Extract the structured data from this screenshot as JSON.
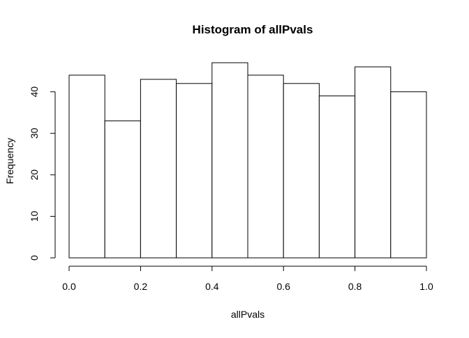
{
  "chart_data": {
    "type": "bar",
    "title": "Histogram of allPvals",
    "xlabel": "allPvals",
    "ylabel": "Frequency",
    "bin_edges": [
      0.0,
      0.1,
      0.2,
      0.3,
      0.4,
      0.5,
      0.6,
      0.7,
      0.8,
      0.9,
      1.0
    ],
    "values": [
      44,
      33,
      43,
      42,
      47,
      44,
      42,
      39,
      46,
      40
    ],
    "xlim": [
      0.0,
      1.0
    ],
    "ylim": [
      0,
      47
    ],
    "x_ticks": [
      0.0,
      0.2,
      0.4,
      0.6,
      0.8,
      1.0
    ],
    "x_tick_labels": [
      "0.0",
      "0.2",
      "0.4",
      "0.6",
      "0.8",
      "1.0"
    ],
    "y_ticks": [
      0,
      10,
      20,
      30,
      40
    ],
    "y_tick_labels": [
      "0",
      "10",
      "20",
      "30",
      "40"
    ],
    "grid": false,
    "bar_fill": "#ffffff",
    "bar_stroke": "#000000"
  }
}
